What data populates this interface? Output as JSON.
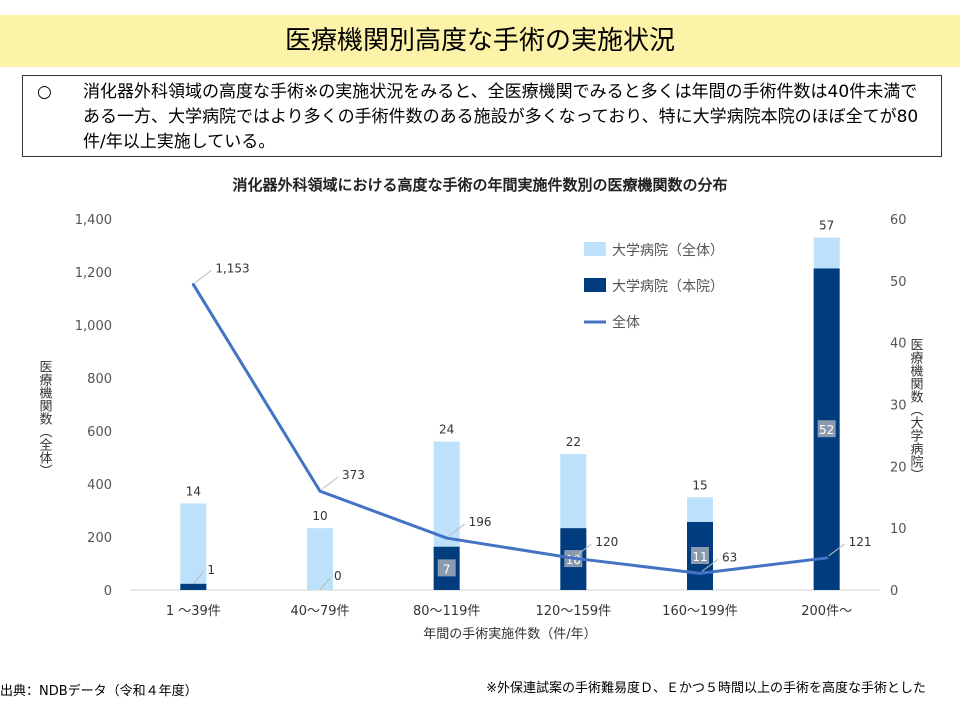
{
  "page": {
    "title": "医療機関別高度な手術の実施状況",
    "summary_bullet": "○",
    "summary_text": "消化器外科領域の高度な手術※の実施状況をみると、全医療機関でみると多くは年間の手術件数は40件未満である一方、大学病院ではより多くの手術件数のある施設が多くなっており、特に大学病院本院のほぼ全てが80件/年以上実施している。",
    "source_note": "出典：NDBデータ（令和４年度）",
    "footnote": "※外保連試案の手術難易度Ｄ、Ｅかつ５時間以上の手術を高度な手術とした"
  },
  "chart_data": {
    "type": "bar",
    "title": "消化器外科領域における高度な手術の年間実施件数別の医療機関数の分布",
    "categories": [
      "1 ～39件",
      "40～79件",
      "80～119件",
      "120～159件",
      "160～199件",
      "200件～"
    ],
    "xlabel": "年間の手術実施件数（件/年）",
    "ylabel_left": "医療機関数（全体）",
    "ylabel_right": "医療機関数（大学病院）",
    "ylim_left": [
      0,
      1400
    ],
    "yticks_left": [
      0,
      200,
      400,
      600,
      800,
      1000,
      1200,
      1400
    ],
    "yticks_left_labels": [
      "0",
      "200",
      "400",
      "600",
      "800",
      "1,000",
      "1,200",
      "1,400"
    ],
    "ylim_right": [
      0,
      60
    ],
    "yticks_right": [
      0,
      10,
      20,
      30,
      40,
      50,
      60
    ],
    "legend_position": "top-right",
    "series": [
      {
        "name": "大学病院（全体）",
        "kind": "bar",
        "axis": "right",
        "color": "#bde0fb",
        "values": [
          14,
          10,
          24,
          22,
          15,
          57
        ]
      },
      {
        "name": "大学病院（本院）",
        "kind": "bar",
        "axis": "right",
        "color": "#003c7e",
        "values": [
          1,
          0,
          7,
          10,
          11,
          52
        ]
      },
      {
        "name": "全体",
        "kind": "line",
        "axis": "left",
        "color": "#4472c4",
        "values": [
          1153,
          373,
          196,
          120,
          63,
          121
        ],
        "labels": [
          "1,153",
          "373",
          "196",
          "120",
          "63",
          "121"
        ]
      }
    ]
  }
}
